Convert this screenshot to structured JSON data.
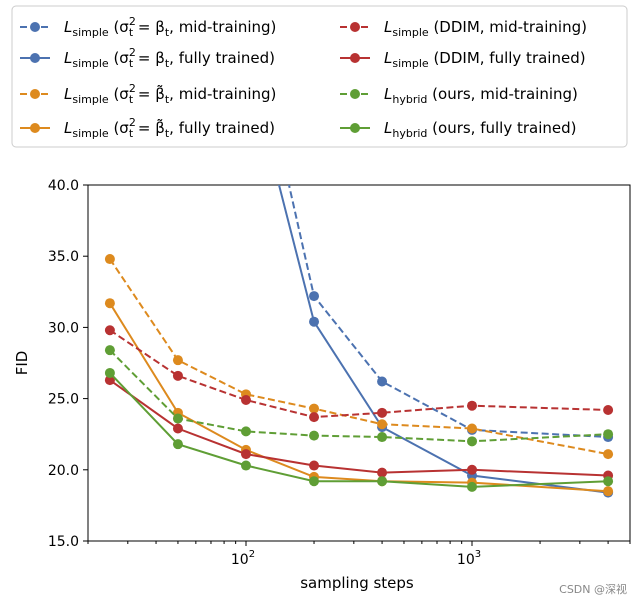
{
  "chart_data": {
    "type": "line",
    "xlabel": "sampling steps",
    "ylabel": "FID",
    "xscale": "log",
    "xlim": [
      20,
      5000
    ],
    "ylim": [
      15.0,
      40.0
    ],
    "yticks": [
      15.0,
      20.0,
      25.0,
      30.0,
      35.0,
      40.0
    ],
    "ytick_labels": [
      "15.0",
      "20.0",
      "25.0",
      "30.0",
      "35.0",
      "40.0"
    ],
    "xticks": [
      100,
      1000
    ],
    "xtick_labels": [
      {
        "base": "10",
        "exp": "2"
      },
      {
        "base": "10",
        "exp": "3"
      }
    ],
    "x": [
      25,
      50,
      100,
      200,
      400,
      1000,
      4000
    ],
    "legend_location": "top",
    "series": [
      {
        "name": "L_simple (σ_t² = β_t, mid-training)",
        "label_base": "L",
        "label_sub": "simple",
        "label_rest": " (σ",
        "label_sigma_sub": "t",
        "label_sigma_sup": "2",
        "label_eq": " = β",
        "label_beta_sub": "t",
        "label_tail": ", mid-training)",
        "tilde": false,
        "color": "#4c72b0",
        "dash": true,
        "values": [
          null,
          null,
          null,
          32.2,
          26.2,
          22.8,
          22.3
        ],
        "enter_from": [
          150,
          41.0
        ]
      },
      {
        "name": "L_simple (σ_t² = β_t, fully trained)",
        "label_base": "L",
        "label_sub": "simple",
        "label_rest": " (σ",
        "label_sigma_sub": "t",
        "label_sigma_sup": "2",
        "label_eq": " = β",
        "label_beta_sub": "t",
        "label_tail": ", fully trained)",
        "tilde": false,
        "color": "#4c72b0",
        "dash": false,
        "values": [
          null,
          null,
          null,
          30.4,
          23.0,
          19.6,
          18.4
        ],
        "enter_from": [
          135,
          41.0
        ]
      },
      {
        "name": "L_simple (σ_t² = β̃_t, mid-training)",
        "label_base": "L",
        "label_sub": "simple",
        "label_rest": " (σ",
        "label_sigma_sub": "t",
        "label_sigma_sup": "2",
        "label_eq": " = β",
        "label_beta_sub": "t",
        "label_tail": ", mid-training)",
        "tilde": true,
        "color": "#dd8a1e",
        "dash": true,
        "values": [
          34.8,
          27.7,
          25.3,
          24.3,
          23.2,
          22.9,
          21.1
        ]
      },
      {
        "name": "L_simple (σ_t² = β̃_t, fully trained)",
        "label_base": "L",
        "label_sub": "simple",
        "label_rest": " (σ",
        "label_sigma_sub": "t",
        "label_sigma_sup": "2",
        "label_eq": " = β",
        "label_beta_sub": "t",
        "label_tail": ", fully trained)",
        "tilde": true,
        "color": "#dd8a1e",
        "dash": false,
        "values": [
          31.7,
          24.0,
          21.4,
          19.5,
          19.2,
          19.1,
          18.5
        ]
      },
      {
        "name": "L_simple (DDIM, mid-training)",
        "label_base": "L",
        "label_sub": "simple",
        "label_tail": " (DDIM, mid-training)",
        "color": "#b83232",
        "dash": true,
        "values": [
          29.8,
          26.6,
          24.9,
          23.7,
          24.0,
          24.5,
          24.2
        ]
      },
      {
        "name": "L_simple (DDIM, fully trained)",
        "label_base": "L",
        "label_sub": "simple",
        "label_tail": " (DDIM, fully trained)",
        "color": "#b83232",
        "dash": false,
        "values": [
          26.3,
          22.9,
          21.1,
          20.3,
          19.8,
          20.0,
          19.6
        ]
      },
      {
        "name": "L_hybrid (ours, mid-training)",
        "label_base": "L",
        "label_sub": "hybrid",
        "label_tail": " (ours, mid-training)",
        "color": "#5f9e35",
        "dash": true,
        "values": [
          28.4,
          23.6,
          22.7,
          22.4,
          22.3,
          22.0,
          22.5
        ]
      },
      {
        "name": "L_hybrid (ours, fully trained)",
        "label_base": "L",
        "label_sub": "hybrid",
        "label_tail": " (ours, fully trained)",
        "color": "#5f9e35",
        "dash": false,
        "values": [
          26.8,
          21.8,
          20.3,
          19.2,
          19.2,
          18.8,
          19.2
        ]
      }
    ]
  },
  "watermark": "CSDN @深视"
}
